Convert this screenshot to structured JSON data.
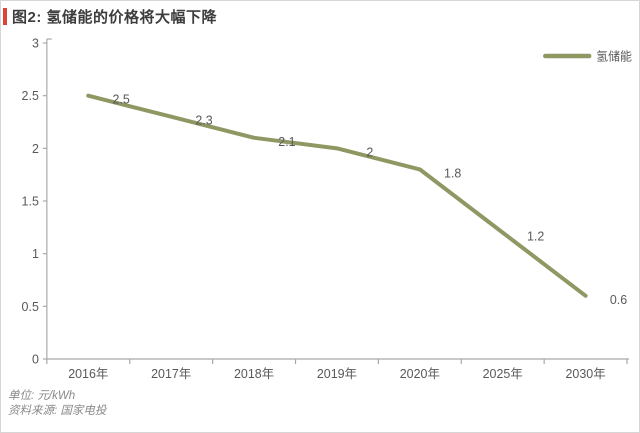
{
  "card": {
    "title": "图2: 氢储能的价格将大幅下降",
    "accent_color": "#d9453a"
  },
  "footer": {
    "unit_line": "单位: 元/kWh",
    "source_line": "资料来源: 国家电投"
  },
  "chart_data": {
    "type": "line",
    "title": "图2: 氢储能的价格将大幅下降",
    "categories": [
      "2016年",
      "2017年",
      "2018年",
      "2019年",
      "2020年",
      "2025年",
      "2030年"
    ],
    "series": [
      {
        "name": "氢储能",
        "values": [
          2.5,
          2.3,
          2.1,
          2.0,
          1.8,
          1.2,
          0.6
        ],
        "color": "#8e9863"
      }
    ],
    "data_labels": [
      "2.5",
      "2.3",
      "2.1",
      "2",
      "1.8",
      "1.2",
      "0.6"
    ],
    "xlabel": "",
    "ylabel": "",
    "ylim": [
      0,
      3
    ],
    "yticks": [
      0,
      0.5,
      1,
      1.5,
      2,
      2.5,
      3
    ],
    "ytick_labels": [
      "0",
      "0.5",
      "1",
      "1.5",
      "2",
      "2.5",
      "3"
    ],
    "unit": "元/kWh",
    "source": "国家电投",
    "grid": false,
    "legend_position": "top-right",
    "axis_color": "#a9a9a9",
    "tick_label_color": "#595959"
  }
}
